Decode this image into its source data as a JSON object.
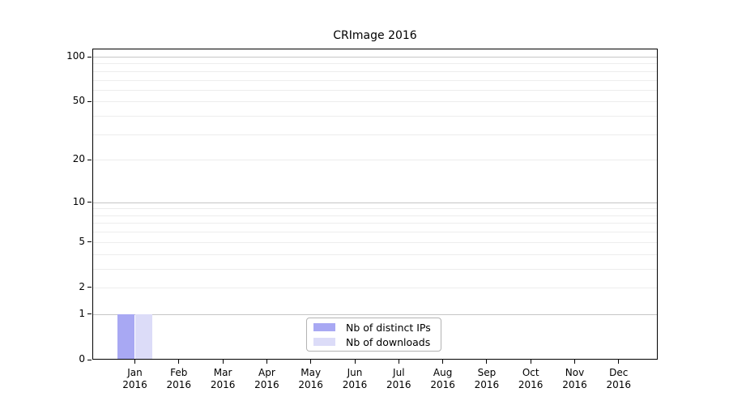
{
  "chart_data": {
    "type": "bar",
    "title": "CRImage 2016",
    "categories": [
      "Jan",
      "Feb",
      "Mar",
      "Apr",
      "May",
      "Jun",
      "Jul",
      "Aug",
      "Sep",
      "Oct",
      "Nov",
      "Dec"
    ],
    "category_year": "2016",
    "series": [
      {
        "name": "Nb of distinct IPs",
        "color": "#a8a8f3",
        "values": [
          1,
          0,
          0,
          0,
          0,
          0,
          0,
          0,
          0,
          0,
          0,
          0
        ]
      },
      {
        "name": "Nb of downloads",
        "color": "#dcdcf8",
        "values": [
          1,
          0,
          0,
          0,
          0,
          0,
          0,
          0,
          0,
          0,
          0,
          0
        ]
      }
    ],
    "y_axis": {
      "scale": "log10(1+x)",
      "tick_values": [
        0,
        1,
        2,
        5,
        10,
        20,
        50,
        100
      ],
      "gridlines_minor": [
        2,
        3,
        4,
        5,
        6,
        7,
        8,
        9,
        20,
        30,
        40,
        50,
        60,
        70,
        80,
        90
      ],
      "gridlines_major": [
        1,
        10,
        100
      ],
      "range_top_value": 113
    },
    "x_axis": {
      "ticks_per_month": 1
    },
    "legend": {
      "position": "bottom-center",
      "entries": [
        "Nb of distinct IPs",
        "Nb of downloads"
      ]
    },
    "grid": "horizontal-only",
    "colors": {
      "axis": "#000000",
      "grid_minor": "#ededed",
      "grid_major": "#c6c6c6",
      "background": "#ffffff",
      "text": "#000000"
    }
  }
}
